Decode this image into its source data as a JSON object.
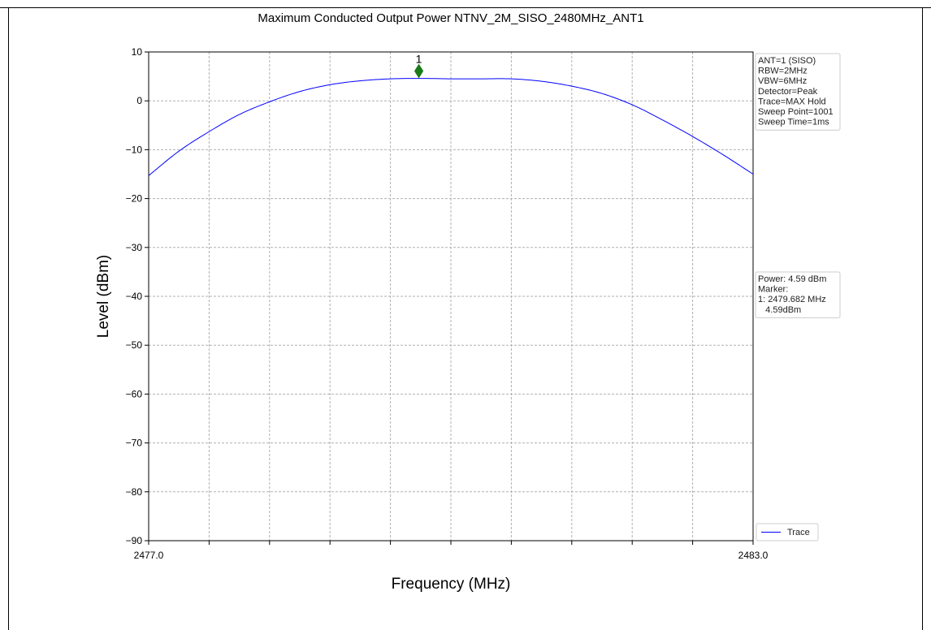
{
  "chart_data": {
    "type": "line",
    "title": "Maximum Conducted Output Power NTNV_2M_SISO_2480MHz_ANT1",
    "xlabel": "Frequency (MHz)",
    "ylabel": "Level (dBm)",
    "xlim": [
      2477.0,
      2483.0
    ],
    "ylim": [
      -90,
      10
    ],
    "x_tick_labels": [
      "2477.0",
      "2483.0"
    ],
    "x_gridlines": [
      2477.0,
      2477.6,
      2478.2,
      2478.8,
      2479.4,
      2480.0,
      2480.6,
      2481.2,
      2481.8,
      2482.4,
      2483.0
    ],
    "y_ticks": [
      10,
      0,
      -10,
      -20,
      -30,
      -40,
      -50,
      -60,
      -70,
      -80,
      -90
    ],
    "grid": true,
    "series": [
      {
        "name": "Trace",
        "color": "#0000ff",
        "x": [
          2477.0,
          2477.3,
          2477.6,
          2477.9,
          2478.2,
          2478.5,
          2478.8,
          2479.1,
          2479.4,
          2479.7,
          2480.0,
          2480.3,
          2480.6,
          2480.9,
          2481.2,
          2481.5,
          2481.8,
          2482.1,
          2482.4,
          2482.7,
          2483.0
        ],
        "y": [
          -15.3,
          -10.3,
          -6.3,
          -2.8,
          -0.2,
          1.9,
          3.3,
          4.1,
          4.5,
          4.59,
          4.5,
          4.5,
          4.5,
          4.0,
          3.0,
          1.5,
          -0.8,
          -3.9,
          -7.3,
          -11.0,
          -15.0
        ]
      }
    ],
    "marker": {
      "label": "1",
      "x": 2479.682,
      "y": 4.59,
      "color": "#1a7a1a",
      "offset_y": 1.5
    },
    "legend": {
      "position": "bottom-right",
      "entries": [
        "Trace"
      ]
    },
    "info_box": [
      "ANT=1 (SISO)",
      "RBW=2MHz",
      "VBW=6MHz",
      "Detector=Peak",
      "Trace=MAX Hold",
      "Sweep Point=1001",
      "Sweep Time=1ms"
    ],
    "result_box": [
      "Power: 4.59 dBm",
      "Marker:",
      "1: 2479.682 MHz",
      "   4.59dBm"
    ]
  }
}
